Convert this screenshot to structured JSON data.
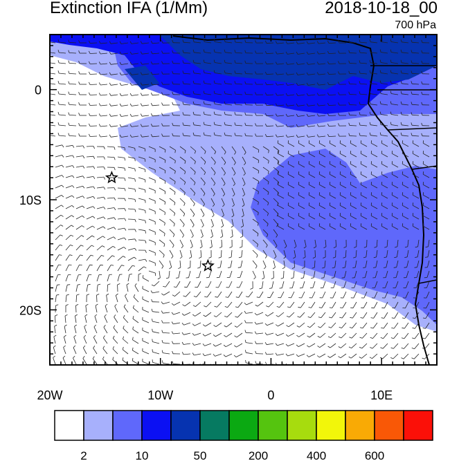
{
  "title": "Extinction IFA (1/Mm)",
  "datetime": "2018-10-18_00",
  "level": "700 hPa",
  "axes": {
    "x_ticks": [
      {
        "lon": -20,
        "label": "20W"
      },
      {
        "lon": -10,
        "label": "10W"
      },
      {
        "lon": 0,
        "label": "0"
      },
      {
        "lon": 10,
        "label": "10E"
      }
    ],
    "y_ticks": [
      {
        "lat": 0,
        "label": "0"
      },
      {
        "lat": -10,
        "label": "10S"
      },
      {
        "lat": -20,
        "label": "20S"
      }
    ],
    "lon_range": [
      -20,
      15
    ],
    "lat_range": [
      -25,
      5
    ]
  },
  "stations": [
    {
      "name": "star-1",
      "lon": -14.4,
      "lat": -8.0
    },
    {
      "name": "star-2",
      "lon": -5.7,
      "lat": -16.0
    }
  ],
  "colorbar": {
    "colors": [
      "#ffffff",
      "#a7b0fc",
      "#5f68fb",
      "#0b10f3",
      "#0633b0",
      "#067a61",
      "#0ba912",
      "#55c40f",
      "#a7dc0e",
      "#f2f60a",
      "#f9aa05",
      "#f95806",
      "#fb1008"
    ],
    "labels": [
      {
        "after_box": 1,
        "text": "2"
      },
      {
        "after_box": 3,
        "text": "10"
      },
      {
        "after_box": 5,
        "text": "50"
      },
      {
        "after_box": 7,
        "text": "200"
      },
      {
        "after_box": 9,
        "text": "400"
      },
      {
        "after_box": 11,
        "text": "600"
      }
    ]
  },
  "colors": {
    "light_blue": "#a7b0fc",
    "mid_blue": "#5f68fb",
    "bright_blue": "#0b10f3",
    "dark_blue": "#0633b0"
  }
}
